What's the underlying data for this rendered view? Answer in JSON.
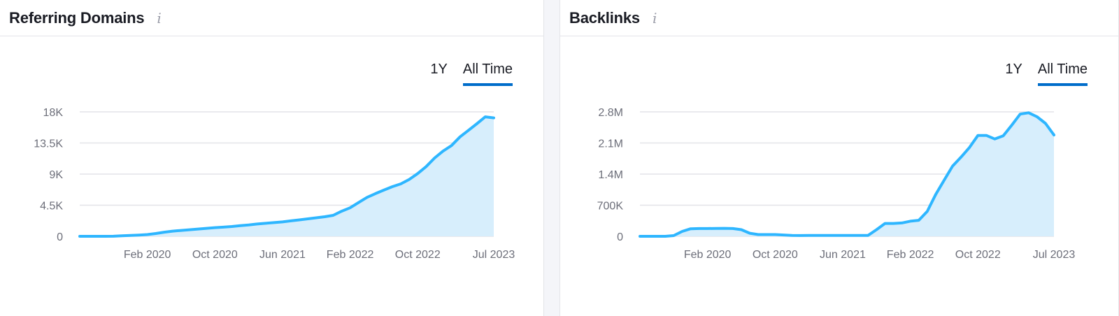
{
  "panels": [
    {
      "title": "Referring Domains",
      "info_icon": "info-icon",
      "tabs": [
        "1Y",
        "All Time"
      ],
      "active_tab": "All Time"
    },
    {
      "title": "Backlinks",
      "info_icon": "info-icon",
      "tabs": [
        "1Y",
        "All Time"
      ],
      "active_tab": "All Time"
    }
  ],
  "colors": {
    "line": "#2eb6ff",
    "fill": "#d7eefc",
    "grid": "#e3e4e8",
    "tab_underline": "#006dca"
  },
  "chart_data": [
    {
      "type": "area",
      "title": "Referring Domains",
      "xlabel": "",
      "ylabel": "",
      "x_tick_labels": [
        "Feb 2020",
        "Oct 2020",
        "Jun 2021",
        "Feb 2022",
        "Oct 2022",
        "Jul 2023"
      ],
      "y_tick_labels": [
        "0",
        "4.5K",
        "9K",
        "13.5K",
        "18K"
      ],
      "ylim": [
        0,
        18000
      ],
      "grid": true,
      "legend": "none",
      "series": [
        {
          "x": [
            "Jun 2019",
            "Jul 2019",
            "Aug 2019",
            "Sep 2019",
            "Oct 2019",
            "Nov 2019",
            "Dec 2019",
            "Jan 2020",
            "Feb 2020",
            "Mar 2020",
            "Apr 2020",
            "May 2020",
            "Jun 2020",
            "Jul 2020",
            "Aug 2020",
            "Sep 2020",
            "Oct 2020",
            "Nov 2020",
            "Dec 2020",
            "Jan 2021",
            "Feb 2021",
            "Mar 2021",
            "Apr 2021",
            "May 2021",
            "Jun 2021",
            "Jul 2021",
            "Aug 2021",
            "Sep 2021",
            "Oct 2021",
            "Nov 2021",
            "Dec 2021",
            "Jan 2022",
            "Feb 2022",
            "Mar 2022",
            "Apr 2022",
            "May 2022",
            "Jun 2022",
            "Jul 2022",
            "Aug 2022",
            "Sep 2022",
            "Oct 2022",
            "Nov 2022",
            "Dec 2022",
            "Jan 2023",
            "Feb 2023",
            "Mar 2023",
            "Apr 2023",
            "May 2023",
            "Jun 2023",
            "Jul 2023"
          ],
          "values": [
            0,
            0,
            0,
            0,
            10,
            80,
            130,
            180,
            250,
            400,
            600,
            750,
            850,
            950,
            1050,
            1150,
            1250,
            1320,
            1420,
            1550,
            1650,
            1780,
            1880,
            1980,
            2080,
            2230,
            2380,
            2530,
            2680,
            2830,
            3030,
            3630,
            4130,
            4880,
            5630,
            6180,
            6680,
            7180,
            7580,
            8230,
            9080,
            10080,
            11330,
            12330,
            13130,
            14380,
            15330,
            16280,
            17280,
            17130
          ]
        }
      ]
    },
    {
      "type": "area",
      "title": "Backlinks",
      "xlabel": "",
      "ylabel": "",
      "x_tick_labels": [
        "Feb 2020",
        "Oct 2020",
        "Jun 2021",
        "Feb 2022",
        "Oct 2022",
        "Jul 2023"
      ],
      "y_tick_labels": [
        "0",
        "700K",
        "1.4M",
        "2.1M",
        "2.8M"
      ],
      "ylim": [
        0,
        2800000
      ],
      "grid": true,
      "legend": "none",
      "series": [
        {
          "x": [
            "Jun 2019",
            "Jul 2019",
            "Aug 2019",
            "Sep 2019",
            "Oct 2019",
            "Nov 2019",
            "Dec 2019",
            "Jan 2020",
            "Feb 2020",
            "Mar 2020",
            "Apr 2020",
            "May 2020",
            "Jun 2020",
            "Jul 2020",
            "Aug 2020",
            "Sep 2020",
            "Oct 2020",
            "Nov 2020",
            "Dec 2020",
            "Jan 2021",
            "Feb 2021",
            "Mar 2021",
            "Apr 2021",
            "May 2021",
            "Jun 2021",
            "Jul 2021",
            "Aug 2021",
            "Sep 2021",
            "Oct 2021",
            "Nov 2021",
            "Dec 2021",
            "Jan 2022",
            "Feb 2022",
            "Mar 2022",
            "Apr 2022",
            "May 2022",
            "Jun 2022",
            "Jul 2022",
            "Aug 2022",
            "Sep 2022",
            "Oct 2022",
            "Nov 2022",
            "Dec 2022",
            "Jan 2023",
            "Feb 2023",
            "Mar 2023",
            "Apr 2023",
            "May 2023",
            "Jun 2023",
            "Jul 2023"
          ],
          "values": [
            0,
            0,
            0,
            0,
            15000,
            110000,
            170000,
            175000,
            175000,
            178000,
            180000,
            175000,
            150000,
            70000,
            40000,
            40000,
            40000,
            30000,
            20000,
            18000,
            20000,
            20000,
            20000,
            20000,
            20000,
            20000,
            20000,
            20000,
            150000,
            290000,
            290000,
            300000,
            340000,
            360000,
            560000,
            940000,
            1260000,
            1580000,
            1780000,
            2000000,
            2270000,
            2270000,
            2190000,
            2260000,
            2500000,
            2750000,
            2780000,
            2690000,
            2540000,
            2280000
          ]
        }
      ]
    }
  ]
}
